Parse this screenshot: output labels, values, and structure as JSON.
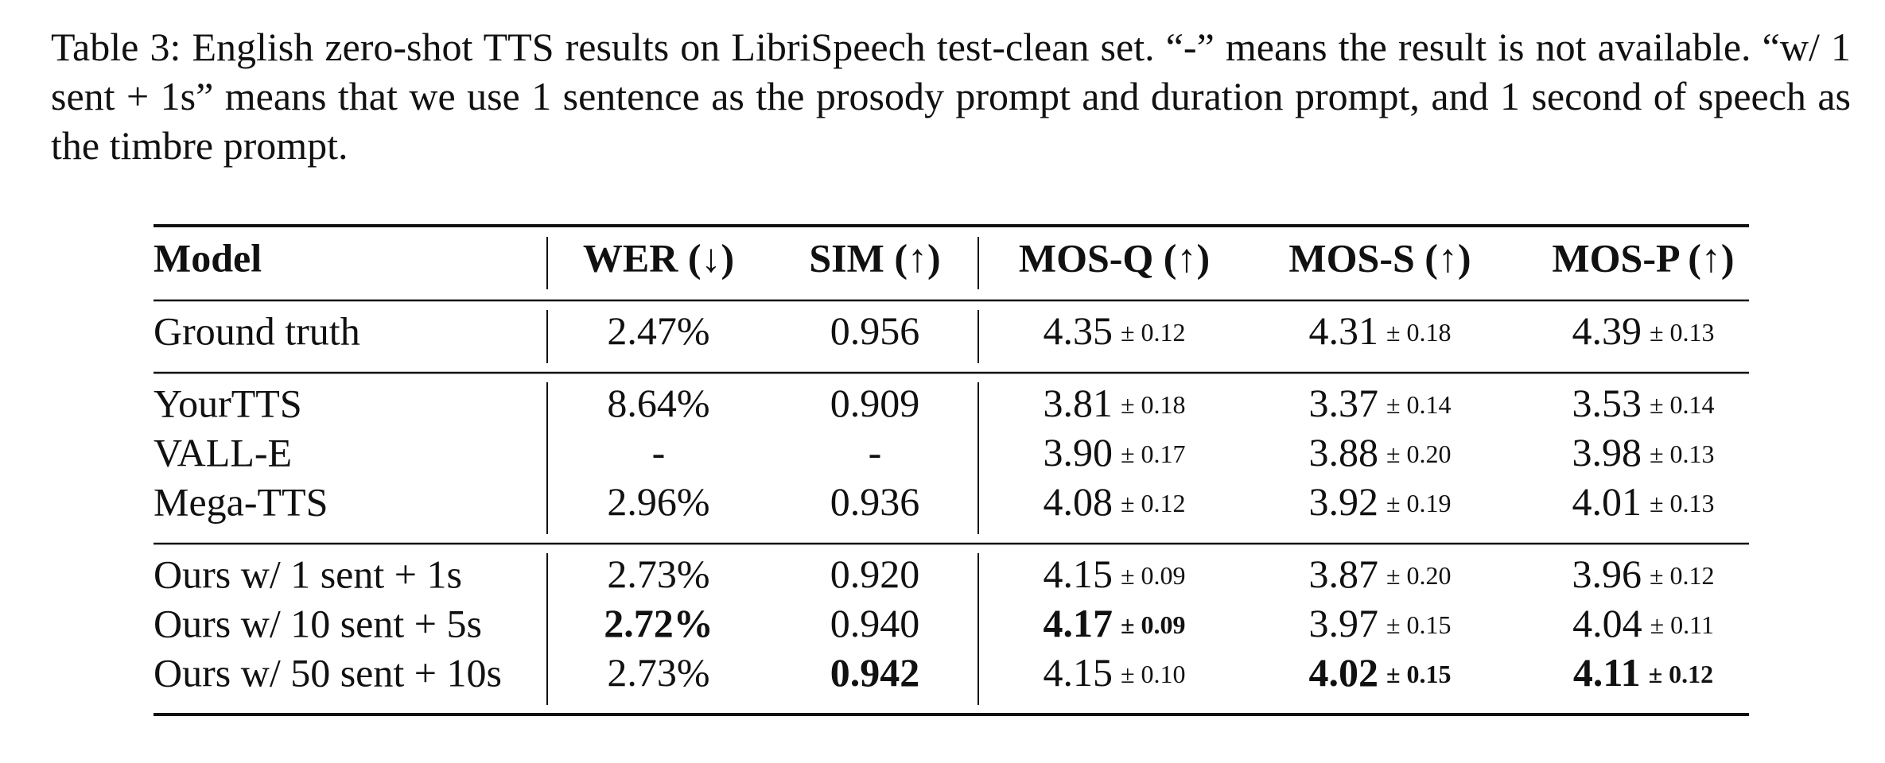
{
  "caption": "Table 3: English zero-shot TTS results on LibriSpeech test-clean set. “-” means the result is not available. “w/ 1 sent + 1s” means that we use 1 sentence as the prosody prompt and duration prompt, and 1 second of speech as the timbre prompt.",
  "table": {
    "header": [
      "Model",
      "WER (↓)",
      "SIM (↑)",
      "MOS-Q (↑)",
      "MOS-S (↑)",
      "MOS-P (↑)"
    ],
    "groups": [
      {
        "rows": [
          {
            "model": "Ground truth",
            "cells": [
              {
                "value": "2.47%"
              },
              {
                "value": "0.956"
              },
              {
                "value": "4.35",
                "error": "± 0.12"
              },
              {
                "value": "4.31",
                "error": "± 0.18"
              },
              {
                "value": "4.39",
                "error": "± 0.13"
              }
            ]
          }
        ]
      },
      {
        "rows": [
          {
            "model": "YourTTS",
            "cells": [
              {
                "value": "8.64%"
              },
              {
                "value": "0.909"
              },
              {
                "value": "3.81",
                "error": "± 0.18"
              },
              {
                "value": "3.37",
                "error": "± 0.14"
              },
              {
                "value": "3.53",
                "error": "± 0.14"
              }
            ]
          },
          {
            "model": "VALL-E",
            "cells": [
              {
                "value": "-"
              },
              {
                "value": "-"
              },
              {
                "value": "3.90",
                "error": "± 0.17"
              },
              {
                "value": "3.88",
                "error": "± 0.20"
              },
              {
                "value": "3.98",
                "error": "± 0.13"
              }
            ]
          },
          {
            "model": "Mega-TTS",
            "cells": [
              {
                "value": "2.96%"
              },
              {
                "value": "0.936"
              },
              {
                "value": "4.08",
                "error": "± 0.12"
              },
              {
                "value": "3.92",
                "error": "± 0.19"
              },
              {
                "value": "4.01",
                "error": "± 0.13"
              }
            ]
          }
        ]
      },
      {
        "rows": [
          {
            "model": "Ours w/ 1 sent + 1s",
            "cells": [
              {
                "value": "2.73%"
              },
              {
                "value": "0.920"
              },
              {
                "value": "4.15",
                "error": "± 0.09"
              },
              {
                "value": "3.87",
                "error": "± 0.20"
              },
              {
                "value": "3.96",
                "error": "± 0.12"
              }
            ]
          },
          {
            "model": "Ours w/ 10 sent + 5s",
            "cells": [
              {
                "value": "2.72%",
                "bold": true
              },
              {
                "value": "0.940"
              },
              {
                "value": "4.17",
                "error": "± 0.09",
                "bold": true
              },
              {
                "value": "3.97",
                "error": "± 0.15"
              },
              {
                "value": "4.04",
                "error": "± 0.11"
              }
            ]
          },
          {
            "model": "Ours w/ 50 sent + 10s",
            "cells": [
              {
                "value": "2.73%"
              },
              {
                "value": "0.942",
                "bold": true
              },
              {
                "value": "4.15",
                "error": "± 0.10"
              },
              {
                "value": "4.02",
                "error": "± 0.15",
                "bold": true
              },
              {
                "value": "4.11",
                "error": "± 0.12",
                "bold": true
              }
            ]
          }
        ]
      }
    ]
  }
}
